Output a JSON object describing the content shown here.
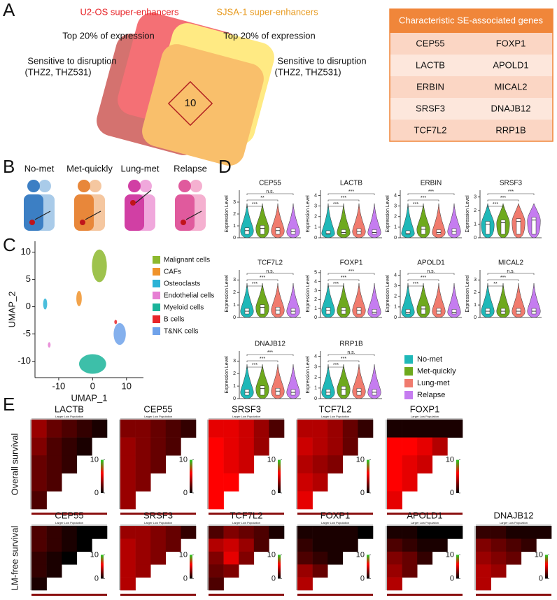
{
  "panel_a": {
    "label": "A",
    "title_left": "U2-OS super-enhancers",
    "title_right": "SJSA-1 super-enhancers",
    "top_left": "Top 20% of expression",
    "top_right": "Top 20% of expression",
    "side_left": [
      "Sensitive to disruption",
      "(THZ2, THZ531)"
    ],
    "side_right": [
      "Sensitive to disruption",
      "(THZ2, THZ531)"
    ],
    "overlap_count": 10
  },
  "table": {
    "header": "Characteristic SE-associated genes",
    "rows": [
      [
        "CEP55",
        "FOXP1"
      ],
      [
        "LACTB",
        "APOLD1"
      ],
      [
        "ERBIN",
        "MICAL2"
      ],
      [
        "SRSF3",
        "DNAJB12"
      ],
      [
        "TCF7L2",
        "RRP1B"
      ]
    ]
  },
  "panel_b": {
    "label": "B",
    "groups": [
      "No-met",
      "Met-quickly",
      "Lung-met",
      "Relapse"
    ]
  },
  "panel_c": {
    "label": "C",
    "xlabel": "UMAP_1",
    "ylabel": "UMAP_2",
    "xlim": [
      -17,
      15
    ],
    "ylim": [
      -13,
      12
    ],
    "xticks": [
      -10,
      0,
      10
    ],
    "yticks": [
      -10,
      -5,
      0,
      5,
      10
    ],
    "clusters": [
      {
        "name": "Malignant cells",
        "color": "#8db92e",
        "x": 2,
        "y": 7.5,
        "sx": 2.2,
        "sy": 3
      },
      {
        "name": "CAFs",
        "color": "#f0932b",
        "x": -4,
        "y": 1.5,
        "sx": 0.8,
        "sy": 1.4
      },
      {
        "name": "Osteoclasts",
        "color": "#2bb3d6",
        "x": -14,
        "y": 0.5,
        "sx": 0.6,
        "sy": 1
      },
      {
        "name": "Endothelial cells",
        "color": "#e67fd3",
        "x": -12.8,
        "y": -7,
        "sx": 0.4,
        "sy": 0.5
      },
      {
        "name": "Myeloid cells",
        "color": "#1bb49a",
        "x": 0,
        "y": -10.5,
        "sx": 4,
        "sy": 1.8
      },
      {
        "name": "B cells",
        "color": "#e8262a",
        "x": 6.8,
        "y": -2.8,
        "sx": 0.4,
        "sy": 0.4
      },
      {
        "name": "T&NK cells",
        "color": "#6fa2ea",
        "x": 8,
        "y": -5,
        "sx": 1.8,
        "sy": 2
      }
    ]
  },
  "panel_d": {
    "label": "D",
    "ylabel": "Expression Level",
    "groups": [
      {
        "name": "No-met",
        "color": "#1fb8b8"
      },
      {
        "name": "Met-quickly",
        "color": "#6ea91d"
      },
      {
        "name": "Lung-met",
        "color": "#f07b6e"
      },
      {
        "name": "Relapse",
        "color": "#c57cf0"
      }
    ],
    "genes": [
      {
        "name": "CEP55",
        "ylim": [
          0,
          4
        ],
        "yticks": [
          0,
          1,
          2,
          3
        ],
        "medians": [
          0.6,
          0.8,
          0.6,
          0.5
        ],
        "significance": [
          "***",
          "**",
          "n.s."
        ]
      },
      {
        "name": "LACTB",
        "ylim": [
          0,
          4.5
        ],
        "yticks": [
          0,
          1,
          2,
          3,
          4
        ],
        "medians": [
          0.4,
          0.5,
          0.6,
          0.5
        ],
        "significance": [
          "***",
          "***",
          "***"
        ]
      },
      {
        "name": "ERBIN",
        "ylim": [
          0,
          4.5
        ],
        "yticks": [
          0,
          1,
          2,
          3,
          4
        ],
        "medians": [
          0.4,
          0.8,
          0.5,
          0.6
        ],
        "significance": [
          "***",
          "***",
          "***"
        ]
      },
      {
        "name": "SRSF3",
        "ylim": [
          0,
          3.5
        ],
        "yticks": [
          0,
          1,
          2,
          3
        ],
        "medians": [
          1.0,
          1.1,
          1.2,
          1.3
        ],
        "significance": [
          "***",
          "***",
          "***"
        ]
      },
      {
        "name": "TCF7L2",
        "ylim": [
          0,
          3.8
        ],
        "yticks": [
          0,
          1,
          2,
          3
        ],
        "medians": [
          0.5,
          0.8,
          0.6,
          0.5
        ],
        "significance": [
          "***",
          "***",
          "n.s."
        ]
      },
      {
        "name": "FOXP1",
        "ylim": [
          0,
          5.3
        ],
        "yticks": [
          0,
          1,
          2,
          3,
          4,
          5
        ],
        "medians": [
          0.8,
          0.8,
          0.8,
          0.6
        ],
        "significance": [
          "***",
          "***",
          "***"
        ]
      },
      {
        "name": "APOLD1",
        "ylim": [
          0,
          4.5
        ],
        "yticks": [
          0,
          1,
          2,
          3,
          4
        ],
        "medians": [
          0.5,
          0.8,
          0.6,
          0.5
        ],
        "significance": [
          "***",
          "***",
          "n.s."
        ]
      },
      {
        "name": "MICAL2",
        "ylim": [
          0,
          3.8
        ],
        "yticks": [
          0,
          1,
          2,
          3
        ],
        "medians": [
          0.5,
          0.5,
          0.5,
          0.5
        ],
        "significance": [
          "**",
          "***",
          "n.s."
        ]
      },
      {
        "name": "DNAJB12",
        "ylim": [
          0,
          3.8
        ],
        "yticks": [
          0,
          1,
          2,
          3
        ],
        "medians": [
          0.5,
          0.8,
          0.6,
          0.5
        ],
        "significance": [
          "***",
          "***",
          "***"
        ]
      },
      {
        "name": "RRP1B",
        "ylim": [
          0,
          4.5
        ],
        "yticks": [
          0,
          1,
          2,
          3,
          4
        ],
        "medians": [
          0.6,
          0.9,
          0.7,
          0.6
        ],
        "significance": [
          "***",
          "***",
          "n.s."
        ]
      }
    ]
  },
  "panel_e": {
    "label": "E",
    "axis_label": "Larger Low Population",
    "colorbar_lim": [
      0,
      10
    ],
    "colorbar_ticks": [
      10,
      0
    ],
    "rows": [
      {
        "name": "Overall survival",
        "maps": [
          {
            "gene": "LACTB",
            "values": [
              [
                6,
                4,
                3,
                2,
                1
              ],
              [
                5,
                3,
                2,
                1
              ],
              [
                4,
                3,
                2
              ],
              [
                4,
                3
              ],
              [
                3
              ]
            ]
          },
          {
            "gene": "CEP55",
            "values": [
              [
                5,
                5,
                4,
                3,
                2
              ],
              [
                6,
                5,
                4,
                3
              ],
              [
                6,
                5,
                4
              ],
              [
                6,
                5
              ],
              [
                6
              ]
            ]
          },
          {
            "gene": "SRSF3",
            "values": [
              [
                9,
                9,
                8,
                6,
                3
              ],
              [
                10,
                9,
                8,
                6
              ],
              [
                10,
                9,
                8
              ],
              [
                10,
                10
              ],
              [
                10
              ]
            ]
          },
          {
            "gene": "TCF7L2",
            "values": [
              [
                7,
                7,
                6,
                4,
                2
              ],
              [
                8,
                7,
                6,
                4
              ],
              [
                7,
                6,
                5
              ],
              [
                8,
                7
              ],
              [
                9
              ]
            ]
          },
          {
            "gene": "FOXP1",
            "values": [
              [
                1,
                1,
                1,
                1,
                1
              ],
              [
                10,
                10,
                9,
                7
              ],
              [
                10,
                9,
                8
              ],
              [
                10,
                9
              ],
              [
                9
              ]
            ]
          }
        ]
      },
      {
        "name": "LM-free survival",
        "maps": [
          {
            "gene": "CEP55",
            "values": [
              [
                3,
                2,
                1,
                0,
                0
              ],
              [
                3,
                2,
                1,
                0
              ],
              [
                2,
                1,
                0
              ],
              [
                2,
                1
              ],
              [
                1
              ]
            ]
          },
          {
            "gene": "SRSF3",
            "values": [
              [
                6,
                6,
                5,
                4,
                2
              ],
              [
                7,
                6,
                5,
                4
              ],
              [
                7,
                6,
                5
              ],
              [
                7,
                6
              ],
              [
                7
              ]
            ]
          },
          {
            "gene": "TCF7L2",
            "values": [
              [
                3,
                5,
                4,
                3,
                1
              ],
              [
                7,
                8,
                6,
                3
              ],
              [
                5,
                9,
                5
              ],
              [
                4,
                5
              ],
              [
                3
              ]
            ]
          },
          {
            "gene": "FOXP1",
            "values": [
              [
                1,
                1,
                1,
                1,
                0
              ],
              [
                2,
                1,
                1,
                1
              ],
              [
                3,
                2,
                1
              ],
              [
                6,
                4
              ],
              [
                7
              ]
            ]
          },
          {
            "gene": "APOLD1",
            "values": [
              [
                1,
                1,
                0,
                0,
                0
              ],
              [
                3,
                2,
                1,
                1
              ],
              [
                5,
                4,
                2
              ],
              [
                6,
                4
              ],
              [
                7
              ]
            ]
          },
          {
            "gene": "DNAJB12",
            "values": [
              [
                2,
                2,
                1,
                1,
                1
              ],
              [
                5,
                4,
                3,
                2
              ],
              [
                6,
                5,
                4
              ],
              [
                7,
                6
              ],
              [
                7
              ]
            ]
          }
        ]
      }
    ]
  }
}
